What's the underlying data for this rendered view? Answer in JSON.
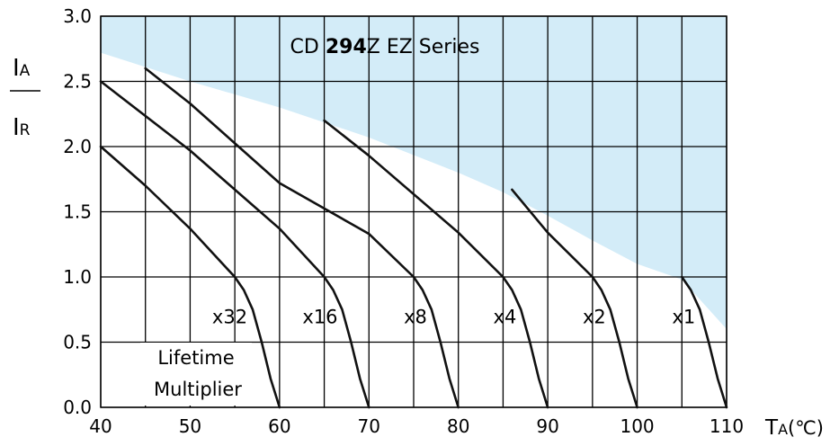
{
  "chart_data": {
    "type": "line",
    "title_prefix": "CD ",
    "title_bold": "294",
    "title_suffix": "Z EZ Series",
    "ylabel_top_main": "I",
    "ylabel_top_sub": "A",
    "ylabel_bottom_main": "I",
    "ylabel_bottom_sub": "R",
    "xlabel_main": "T",
    "xlabel_sub": "A",
    "xlabel_unit": "(℃)",
    "xlim": [
      40,
      110
    ],
    "ylim": [
      0,
      3.0
    ],
    "x_ticks": [
      "40",
      "50",
      "60",
      "70",
      "80",
      "90",
      "100",
      "110"
    ],
    "y_ticks": [
      "0.0",
      "0.5",
      "1.0",
      "1.5",
      "2.0",
      "2.5",
      "3.0"
    ],
    "x_grid_step": 5,
    "y_grid_step": 0.5,
    "grid": true,
    "legend_title_line1": "Lifetime",
    "legend_title_line2": "Multiplier",
    "colors": {
      "shaded_region": "#d3ecf8",
      "line": "#111111",
      "grid": "#000000"
    },
    "safe_limit_boundary": [
      [
        40,
        2.72
      ],
      [
        50,
        2.5
      ],
      [
        60,
        2.3
      ],
      [
        70,
        2.07
      ],
      [
        80,
        1.8
      ],
      [
        85,
        1.65
      ],
      [
        90,
        1.47
      ],
      [
        95,
        1.28
      ],
      [
        100,
        1.1
      ],
      [
        105,
        0.98
      ]
    ],
    "series": [
      {
        "label": "x32",
        "label_x": 56.4,
        "label_y": 0.7,
        "points": [
          [
            40,
            2.0
          ],
          [
            45,
            1.7
          ],
          [
            50,
            1.37
          ],
          [
            55,
            1.0
          ],
          [
            56,
            0.9
          ],
          [
            57,
            0.75
          ],
          [
            58,
            0.5
          ],
          [
            59,
            0.22
          ],
          [
            60,
            0.0
          ]
        ]
      },
      {
        "label": "x16",
        "label_x": 66.5,
        "label_y": 0.7,
        "points": [
          [
            40,
            2.5
          ],
          [
            50,
            1.97
          ],
          [
            60,
            1.37
          ],
          [
            65,
            1.0
          ],
          [
            66,
            0.9
          ],
          [
            67,
            0.75
          ],
          [
            68,
            0.5
          ],
          [
            69,
            0.22
          ],
          [
            70,
            0.0
          ]
        ]
      },
      {
        "label": "x8",
        "label_x": 76.5,
        "label_y": 0.7,
        "points": [
          [
            45,
            2.6
          ],
          [
            50,
            2.33
          ],
          [
            60,
            1.72
          ],
          [
            70,
            1.33
          ],
          [
            75,
            1.0
          ],
          [
            76,
            0.9
          ],
          [
            77,
            0.75
          ],
          [
            78,
            0.5
          ],
          [
            79,
            0.22
          ],
          [
            80,
            0.0
          ]
        ]
      },
      {
        "label": "x4",
        "label_x": 86.5,
        "label_y": 0.7,
        "points": [
          [
            65,
            2.2
          ],
          [
            70,
            1.93
          ],
          [
            80,
            1.34
          ],
          [
            85,
            1.0
          ],
          [
            86,
            0.9
          ],
          [
            87,
            0.75
          ],
          [
            88,
            0.5
          ],
          [
            89,
            0.22
          ],
          [
            90,
            0.0
          ]
        ]
      },
      {
        "label": "x2",
        "label_x": 96.5,
        "label_y": 0.7,
        "points": [
          [
            86,
            1.67
          ],
          [
            90,
            1.34
          ],
          [
            95,
            1.0
          ],
          [
            96,
            0.9
          ],
          [
            97,
            0.75
          ],
          [
            98,
            0.5
          ],
          [
            99,
            0.22
          ],
          [
            100,
            0.0
          ]
        ]
      },
      {
        "label": "x1",
        "label_x": 106.5,
        "label_y": 0.7,
        "points": [
          [
            105,
            1.0
          ],
          [
            106,
            0.9
          ],
          [
            107,
            0.75
          ],
          [
            108,
            0.5
          ],
          [
            109,
            0.22
          ],
          [
            110,
            0.0
          ]
        ]
      }
    ]
  }
}
